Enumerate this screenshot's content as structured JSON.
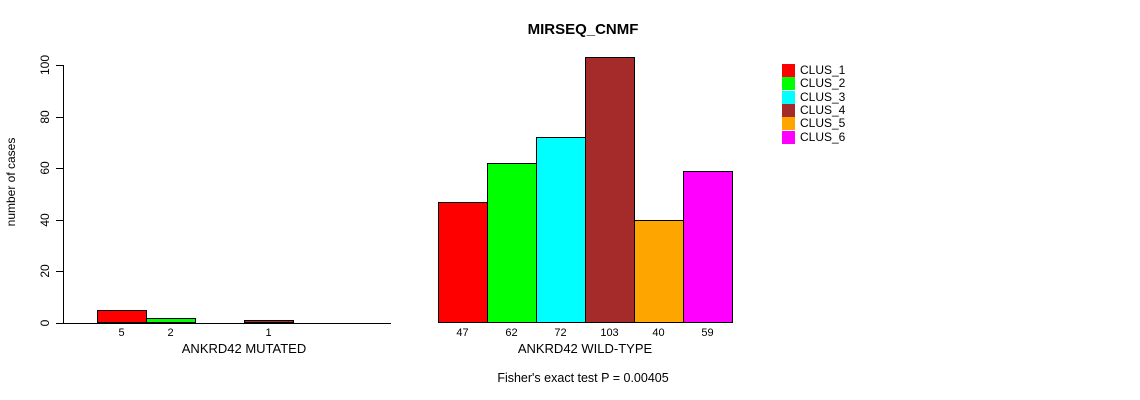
{
  "chart_data": {
    "type": "bar",
    "title": "MIRSEQ_CNMF",
    "ylabel": "number of cases",
    "xlabel": "",
    "ylim": [
      0,
      100
    ],
    "yticks": [
      0,
      20,
      40,
      60,
      80,
      100
    ],
    "grid": false,
    "legend_position": "topright",
    "legend_entries": [
      "CLUS_1",
      "CLUS_2",
      "CLUS_3",
      "CLUS_4",
      "CLUS_5",
      "CLUS_6"
    ],
    "colors": [
      "#FF0000",
      "#00FF00",
      "#00FFFF",
      "#A52A2A",
      "#FFA500",
      "#FF00FF"
    ],
    "groups": [
      {
        "label": "ANKRD42 MUTATED",
        "values": [
          5,
          2,
          0,
          1,
          0,
          0
        ]
      },
      {
        "label": "ANKRD42 WILD-TYPE",
        "values": [
          47,
          62,
          72,
          103,
          40,
          59
        ]
      }
    ],
    "bar_value_labels_shown": true,
    "annotation": "Fisher's exact test P = 0.00405"
  }
}
